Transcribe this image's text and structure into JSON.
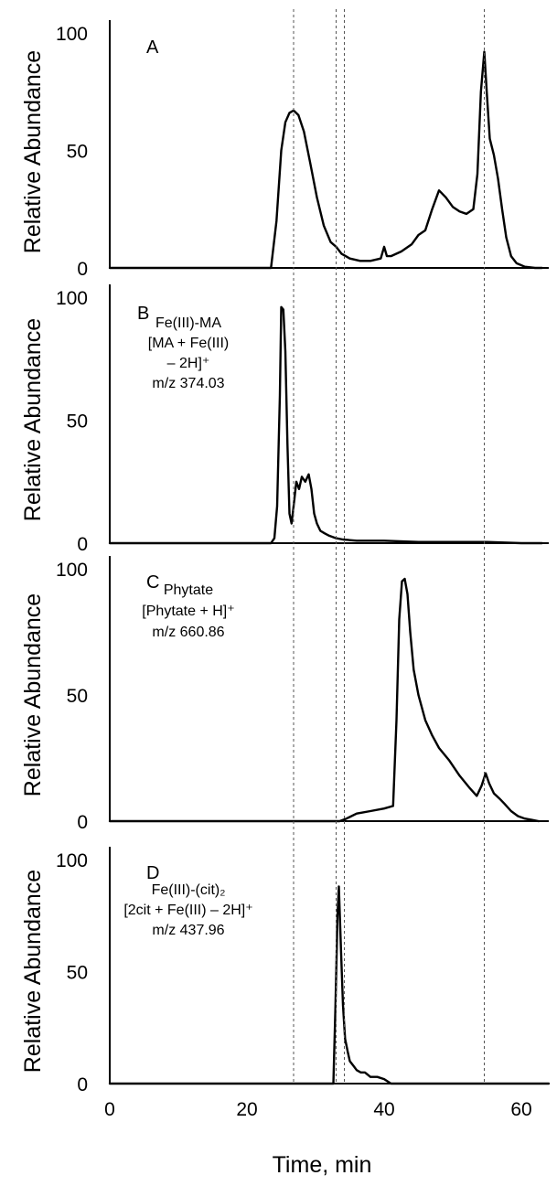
{
  "chart_data": {
    "type": "line",
    "x_axis": {
      "label": "Time, min",
      "range": [
        0,
        64
      ],
      "ticks": [
        0,
        20,
        40,
        60
      ]
    },
    "y_axis": {
      "label": "Relative Abundance",
      "range": [
        0,
        100
      ],
      "ticks": [
        0,
        50,
        100
      ]
    },
    "reference_lines_x": [
      26.8,
      33.0,
      34.2,
      54.6
    ],
    "panels": [
      {
        "label": "A",
        "annotation": [],
        "series": [
          {
            "x": [
              0,
              23.5,
              24.3,
              25.0,
              25.6,
              26.2,
              26.8,
              27.5,
              28.3,
              29.2,
              30.2,
              31.2,
              32.2,
              33.0,
              33.8,
              35.0,
              36.5,
              38.0,
              39.5,
              40.0,
              40.4,
              41.0,
              42.5,
              44.0,
              45.0,
              46.0,
              47.0,
              48.0,
              49.0,
              50.0,
              51.0,
              52.0,
              53.0,
              53.6,
              54.1,
              54.6,
              55.0,
              55.4,
              56.0,
              56.6,
              57.2,
              57.8,
              58.5,
              59.3,
              60.5,
              62.0,
              63.0
            ],
            "y": [
              0,
              0,
              20,
              50,
              62,
              66,
              67,
              65,
              58,
              45,
              30,
              18,
              11,
              9,
              6,
              4,
              3,
              3,
              4,
              9,
              5,
              5,
              7,
              10,
              14,
              16,
              25,
              33,
              30,
              26,
              24,
              23,
              25,
              40,
              75,
              92,
              73,
              55,
              48,
              38,
              25,
              13,
              5,
              2,
              0.5,
              0,
              0
            ]
          }
        ]
      },
      {
        "label": "B",
        "annotation": [
          "Fe(III)-MA",
          "[MA + Fe(III)",
          "– 2H]⁺",
          "m/z 374.03"
        ],
        "series": [
          {
            "x": [
              0,
              23.5,
              24.0,
              24.4,
              24.8,
              25.0,
              25.3,
              25.6,
              25.9,
              26.2,
              26.5,
              26.8,
              27.2,
              27.6,
              28.0,
              28.5,
              29.0,
              29.4,
              29.8,
              30.2,
              30.7,
              31.3,
              32.0,
              33.0,
              34.0,
              36.0,
              40.0,
              45.0,
              50.0,
              55.0,
              60.0,
              63.0
            ],
            "y": [
              0,
              0,
              2,
              15,
              60,
              96,
              95,
              78,
              40,
              12,
              8,
              15,
              25,
              22,
              27,
              25,
              28,
              22,
              12,
              8,
              5,
              4,
              3,
              2,
              1.5,
              1,
              1,
              0.5,
              0.5,
              0.5,
              0,
              0
            ]
          }
        ]
      },
      {
        "label": "C",
        "annotation": [
          "Phytate",
          "[Phytate + H]⁺",
          "m/z 660.86"
        ],
        "series": [
          {
            "x": [
              0,
              33.5,
              34.5,
              36.0,
              38.0,
              40.0,
              41.3,
              41.8,
              42.2,
              42.6,
              43.0,
              43.4,
              43.8,
              44.3,
              45.0,
              46.0,
              47.0,
              48.0,
              49.5,
              51.0,
              52.5,
              53.5,
              54.2,
              54.8,
              55.3,
              56.0,
              56.8,
              57.5,
              58.5,
              59.5,
              60.5,
              61.5,
              62.5
            ],
            "y": [
              0,
              0,
              1,
              3,
              4,
              5,
              6,
              40,
              80,
              95,
              96,
              90,
              75,
              60,
              50,
              40,
              34,
              29,
              24,
              18,
              13,
              10,
              14,
              19,
              15,
              11,
              9,
              7,
              4,
              2,
              1,
              0.5,
              0
            ]
          }
        ]
      },
      {
        "label": "D",
        "annotation": [
          "Fe(III)-(cit)₂",
          "[2cit + Fe(III) – 2H]⁺",
          "m/z 437.96"
        ],
        "series": [
          {
            "x": [
              0,
              32.6,
              32.9,
              33.2,
              33.4,
              33.7,
              34.0,
              34.3,
              34.7,
              35.0,
              35.5,
              36.0,
              36.6,
              37.2,
              38.0,
              39.0,
              40.0,
              41.0,
              64.0
            ],
            "y": [
              0,
              0,
              35,
              75,
              88,
              60,
              35,
              20,
              14,
              10,
              8,
              6,
              5,
              5,
              3,
              3,
              2,
              0,
              0
            ]
          }
        ]
      }
    ]
  }
}
